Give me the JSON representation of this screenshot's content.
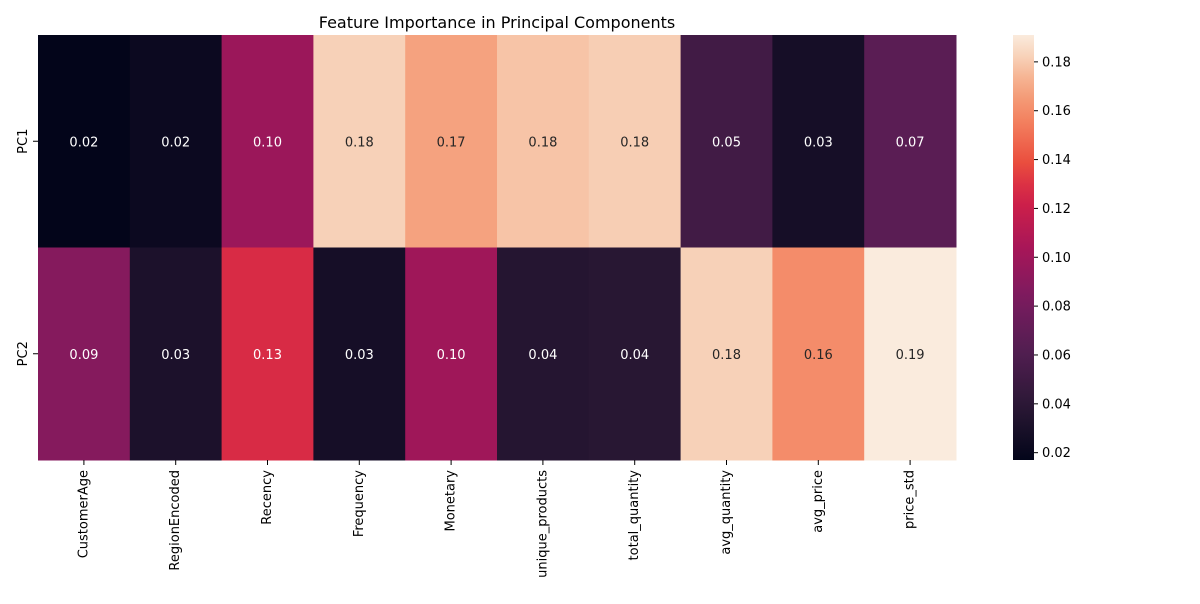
{
  "chart_data": {
    "type": "heatmap",
    "title": "Feature Importance in Principal Components",
    "xlabel": "",
    "ylabel": "",
    "columns": [
      "CustomerAge",
      "RegionEncoded",
      "Recency",
      "Frequency",
      "Monetary",
      "unique_products",
      "total_quantity",
      "avg_quantity",
      "avg_price",
      "price_std"
    ],
    "rows": [
      "PC1",
      "PC2"
    ],
    "values": [
      [
        0.017,
        0.022,
        0.098,
        0.182,
        0.168,
        0.178,
        0.181,
        0.052,
        0.028,
        0.066
      ],
      [
        0.088,
        0.031,
        0.128,
        0.028,
        0.1,
        0.036,
        0.038,
        0.182,
        0.16,
        0.191
      ]
    ],
    "annotations": [
      [
        "0.02",
        "0.02",
        "0.10",
        "0.18",
        "0.17",
        "0.18",
        "0.18",
        "0.05",
        "0.03",
        "0.07"
      ],
      [
        "0.09",
        "0.03",
        "0.13",
        "0.03",
        "0.10",
        "0.04",
        "0.04",
        "0.18",
        "0.16",
        "0.19"
      ]
    ],
    "colorbar": {
      "min": 0.017,
      "max": 0.191,
      "ticks": [
        "0.02",
        "0.04",
        "0.06",
        "0.08",
        "0.10",
        "0.12",
        "0.14",
        "0.16",
        "0.18"
      ],
      "colormap": "rocket"
    }
  }
}
